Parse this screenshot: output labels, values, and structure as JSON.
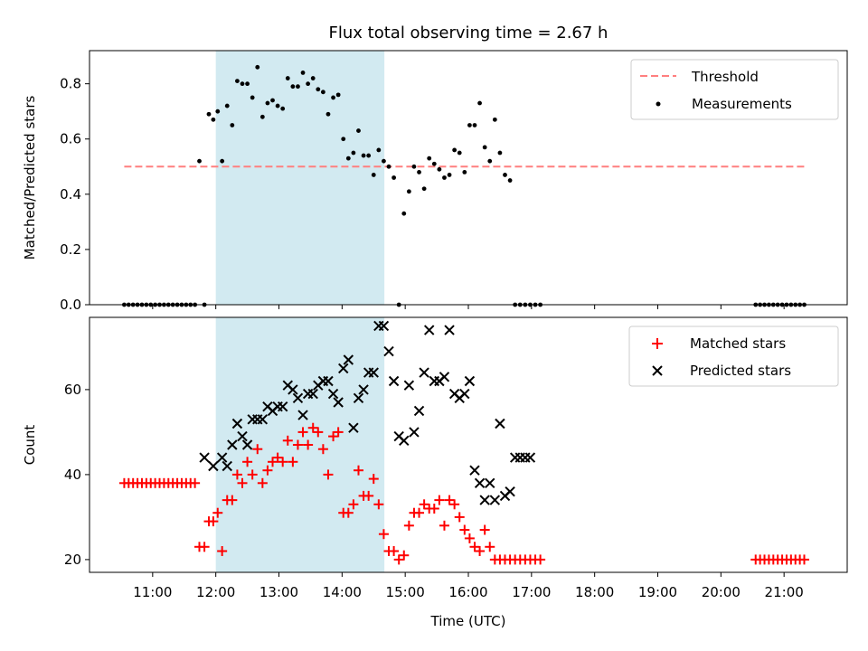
{
  "colors": {
    "threshold": "#ff7f7f",
    "measurement": "#000000",
    "matched": "#ff0000",
    "predicted": "#000000",
    "shade": "#add8e6"
  },
  "chart_data": [
    {
      "type": "scatter",
      "title": "Flux total observing time = 2.67 h",
      "ylabel": "Matched/Predicted stars",
      "xlabel": "",
      "x_unit": "hours UTC",
      "xlim": [
        10.0,
        22.0
      ],
      "ylim": [
        0.0,
        0.92
      ],
      "yticks": [
        0.0,
        0.2,
        0.4,
        0.6,
        0.8
      ],
      "ytick_labels": [
        "0.0",
        "0.2",
        "0.4",
        "0.6",
        "0.8"
      ],
      "grid": false,
      "legend": "top-right",
      "shaded_interval": [
        12.0,
        14.67
      ],
      "threshold": {
        "name": "Threshold",
        "y": 0.5,
        "x_range": [
          10.55,
          21.35
        ]
      },
      "series": [
        {
          "name": "Measurements",
          "x": [
            10.55,
            10.62,
            10.69,
            10.76,
            10.83,
            10.9,
            10.97,
            11.04,
            11.11,
            11.18,
            11.25,
            11.32,
            11.39,
            11.46,
            11.53,
            11.6,
            11.67,
            11.74,
            11.82,
            11.89,
            11.96,
            12.03,
            12.1,
            12.18,
            12.26,
            12.34,
            12.42,
            12.5,
            12.58,
            12.66,
            12.74,
            12.82,
            12.9,
            12.98,
            13.06,
            13.14,
            13.22,
            13.3,
            13.38,
            13.46,
            13.54,
            13.62,
            13.7,
            13.78,
            13.86,
            13.94,
            14.02,
            14.1,
            14.18,
            14.26,
            14.34,
            14.42,
            14.5,
            14.58,
            14.66,
            14.74,
            14.82,
            14.9,
            14.98,
            15.06,
            15.14,
            15.22,
            15.3,
            15.38,
            15.46,
            15.54,
            15.62,
            15.7,
            15.78,
            15.86,
            15.94,
            16.02,
            16.1,
            16.18,
            16.26,
            16.34,
            16.42,
            16.5,
            16.58,
            16.66,
            16.74,
            16.82,
            16.9,
            16.98,
            17.06,
            17.14,
            20.55,
            20.62,
            20.69,
            20.76,
            20.83,
            20.9,
            20.97,
            21.04,
            21.11,
            21.18,
            21.25,
            21.32
          ],
          "y": [
            0,
            0,
            0,
            0,
            0,
            0,
            0,
            0,
            0,
            0,
            0,
            0,
            0,
            0,
            0,
            0,
            0,
            0.52,
            0,
            0.69,
            0.67,
            0.7,
            0.52,
            0.72,
            0.65,
            0.81,
            0.8,
            0.8,
            0.75,
            0.86,
            0.68,
            0.73,
            0.74,
            0.72,
            0.71,
            0.82,
            0.79,
            0.79,
            0.84,
            0.8,
            0.82,
            0.78,
            0.77,
            0.69,
            0.75,
            0.76,
            0.6,
            0.53,
            0.55,
            0.63,
            0.54,
            0.54,
            0.47,
            0.56,
            0.52,
            0.5,
            0.46,
            0.0,
            0.33,
            0.41,
            0.5,
            0.48,
            0.42,
            0.53,
            0.51,
            0.49,
            0.46,
            0.47,
            0.56,
            0.55,
            0.48,
            0.65,
            0.65,
            0.73,
            0.57,
            0.52,
            0.67,
            0.55,
            0.47,
            0.45,
            0,
            0,
            0,
            0,
            0,
            0,
            0,
            0,
            0,
            0,
            0,
            0,
            0,
            0,
            0,
            0,
            0,
            0
          ]
        }
      ]
    },
    {
      "type": "scatter",
      "title": "",
      "ylabel": "Count",
      "xlabel": "Time (UTC)",
      "x_unit": "hours UTC",
      "xlim": [
        10.0,
        22.0
      ],
      "ylim": [
        17,
        77
      ],
      "yticks": [
        20,
        40,
        60
      ],
      "ytick_labels": [
        "20",
        "40",
        "60"
      ],
      "xticks": [
        11,
        12,
        13,
        14,
        15,
        16,
        17,
        18,
        19,
        20,
        21
      ],
      "xtick_labels": [
        "11:00",
        "12:00",
        "13:00",
        "14:00",
        "15:00",
        "16:00",
        "17:00",
        "18:00",
        "19:00",
        "20:00",
        "21:00"
      ],
      "grid": false,
      "legend": "top-right",
      "shaded_interval": [
        12.0,
        14.67
      ],
      "series": [
        {
          "name": "Matched stars",
          "marker": "plus",
          "x": [
            10.55,
            10.62,
            10.69,
            10.76,
            10.83,
            10.9,
            10.97,
            11.04,
            11.11,
            11.18,
            11.25,
            11.32,
            11.39,
            11.46,
            11.53,
            11.6,
            11.67,
            11.74,
            11.82,
            11.89,
            11.96,
            12.03,
            12.1,
            12.18,
            12.26,
            12.34,
            12.42,
            12.5,
            12.58,
            12.66,
            12.74,
            12.82,
            12.9,
            12.98,
            13.06,
            13.14,
            13.22,
            13.3,
            13.38,
            13.46,
            13.54,
            13.62,
            13.7,
            13.78,
            13.86,
            13.94,
            14.02,
            14.1,
            14.18,
            14.26,
            14.34,
            14.42,
            14.5,
            14.58,
            14.66,
            14.74,
            14.82,
            14.9,
            14.98,
            15.06,
            15.14,
            15.22,
            15.3,
            15.38,
            15.46,
            15.54,
            15.62,
            15.7,
            15.78,
            15.86,
            15.94,
            16.02,
            16.1,
            16.18,
            16.26,
            16.34,
            16.42,
            16.5,
            16.58,
            16.66,
            16.74,
            16.82,
            16.9,
            16.98,
            17.06,
            17.14,
            20.55,
            20.62,
            20.69,
            20.76,
            20.83,
            20.9,
            20.97,
            21.04,
            21.11,
            21.18,
            21.25,
            21.32
          ],
          "y": [
            38,
            38,
            38,
            38,
            38,
            38,
            38,
            38,
            38,
            38,
            38,
            38,
            38,
            38,
            38,
            38,
            38,
            23,
            23,
            29,
            29,
            31,
            22,
            34,
            34,
            40,
            38,
            43,
            40,
            46,
            38,
            41,
            43,
            44,
            43,
            48,
            43,
            47,
            50,
            47,
            51,
            50,
            46,
            40,
            49,
            50,
            31,
            31,
            33,
            41,
            35,
            35,
            39,
            33,
            26,
            22,
            22,
            20,
            21,
            28,
            31,
            31,
            33,
            32,
            32,
            34,
            28,
            34,
            33,
            30,
            27,
            25,
            23,
            22,
            27,
            23,
            20,
            20,
            20,
            20,
            20,
            20,
            20,
            20,
            20,
            20,
            20,
            20,
            20,
            20,
            20,
            20,
            20,
            20,
            20,
            20,
            20,
            20
          ]
        },
        {
          "name": "Predicted stars",
          "marker": "x",
          "x": [
            11.82,
            11.96,
            12.1,
            12.18,
            12.26,
            12.34,
            12.42,
            12.5,
            12.58,
            12.66,
            12.74,
            12.82,
            12.9,
            12.98,
            13.06,
            13.14,
            13.22,
            13.3,
            13.38,
            13.46,
            13.54,
            13.62,
            13.7,
            13.78,
            13.86,
            13.94,
            14.02,
            14.1,
            14.18,
            14.26,
            14.34,
            14.42,
            14.5,
            14.58,
            14.66,
            14.74,
            14.82,
            14.9,
            14.98,
            15.06,
            15.14,
            15.22,
            15.3,
            15.38,
            15.46,
            15.54,
            15.62,
            15.7,
            15.78,
            15.86,
            15.94,
            16.02,
            16.1,
            16.18,
            16.26,
            16.34,
            16.42,
            16.5,
            16.58,
            16.66,
            16.74,
            16.82,
            16.9,
            16.98
          ],
          "y": [
            44,
            42,
            44,
            42,
            47,
            52,
            49,
            47,
            53,
            53,
            53,
            56,
            55,
            56,
            56,
            61,
            60,
            58,
            54,
            59,
            59,
            61,
            62,
            62,
            59,
            57,
            65,
            67,
            51,
            58,
            60,
            64,
            64,
            75,
            75,
            69,
            62,
            49,
            48,
            61,
            50,
            55,
            64,
            74,
            62,
            62,
            63,
            74,
            59,
            58,
            59,
            62,
            41,
            38,
            34,
            38,
            34,
            52,
            35,
            36,
            44,
            44,
            44,
            44
          ]
        }
      ]
    }
  ]
}
